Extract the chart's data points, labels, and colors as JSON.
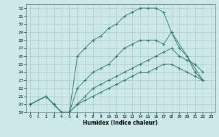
{
  "xlabel": "Humidex (Indice chaleur)",
  "bg_color": "#cde8e8",
  "grid_color": "#aacccc",
  "line_color": "#2e7b6e",
  "xlim": [
    -0.5,
    23.5
  ],
  "ylim": [
    19,
    32.5
  ],
  "xticks": [
    0,
    1,
    2,
    3,
    4,
    5,
    6,
    7,
    8,
    9,
    10,
    11,
    12,
    13,
    14,
    15,
    16,
    17,
    18,
    19,
    20,
    21,
    22,
    23
  ],
  "yticks": [
    19,
    20,
    21,
    22,
    23,
    24,
    25,
    26,
    27,
    28,
    29,
    30,
    31,
    32
  ],
  "curves": [
    {
      "x": [
        0,
        2,
        3,
        4,
        5,
        6,
        7,
        8,
        9,
        10,
        11,
        12,
        13,
        14,
        15,
        16,
        17,
        18,
        22
      ],
      "y": [
        20,
        21,
        20,
        19,
        19,
        26,
        27,
        28,
        28.5,
        29.5,
        30,
        31,
        31.5,
        32,
        32,
        32,
        31.5,
        29,
        23
      ]
    },
    {
      "x": [
        0,
        2,
        3,
        4,
        5,
        6,
        7,
        8,
        9,
        10,
        11,
        12,
        13,
        14,
        15,
        16,
        17,
        18,
        19,
        20,
        21,
        22
      ],
      "y": [
        20,
        21,
        20,
        19,
        19,
        22,
        23,
        24,
        24.5,
        25,
        26,
        27,
        27.5,
        28,
        28,
        28,
        27.5,
        29,
        27,
        26,
        24,
        23
      ]
    },
    {
      "x": [
        0,
        2,
        3,
        4,
        5,
        6,
        7,
        8,
        9,
        10,
        11,
        12,
        13,
        14,
        15,
        16,
        17,
        18,
        19,
        20,
        21,
        22
      ],
      "y": [
        20,
        21,
        20,
        19,
        19,
        20,
        21,
        22,
        22.5,
        23,
        23.5,
        24,
        24.5,
        25,
        25.5,
        26,
        26.5,
        27,
        26,
        25.5,
        25,
        24
      ]
    },
    {
      "x": [
        0,
        2,
        3,
        4,
        5,
        6,
        7,
        8,
        9,
        10,
        11,
        12,
        13,
        14,
        15,
        16,
        17,
        18,
        19,
        20,
        21,
        22
      ],
      "y": [
        20,
        21,
        20,
        19,
        19,
        20,
        20.5,
        21,
        21.5,
        22,
        22.5,
        23,
        23.5,
        24,
        24,
        24.5,
        25,
        25,
        24.5,
        24,
        23.5,
        23
      ]
    }
  ]
}
